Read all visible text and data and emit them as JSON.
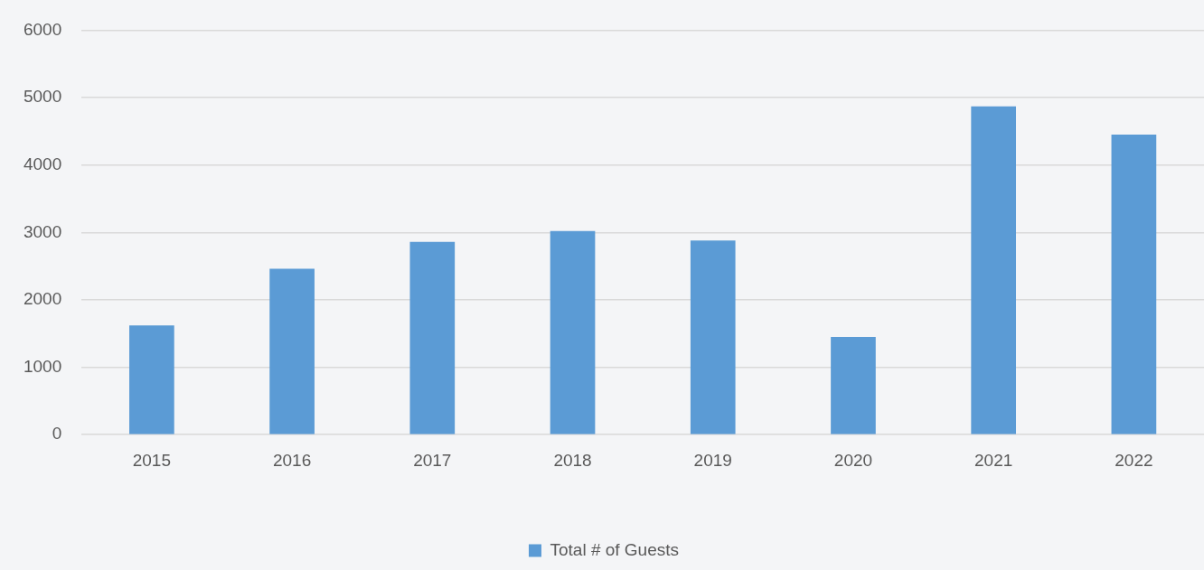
{
  "chart_data": {
    "type": "bar",
    "categories": [
      "2015",
      "2016",
      "2017",
      "2018",
      "2019",
      "2020",
      "2021",
      "2022"
    ],
    "series": [
      {
        "name": "Total # of Guests",
        "color": "#5b9bd5",
        "values": [
          1620,
          2460,
          2860,
          3020,
          2880,
          1450,
          4870,
          4450
        ]
      }
    ],
    "ylim": [
      0,
      6000
    ],
    "yticks": [
      0,
      1000,
      2000,
      3000,
      4000,
      5000,
      6000
    ],
    "grid": "y",
    "legend": "bottom"
  }
}
